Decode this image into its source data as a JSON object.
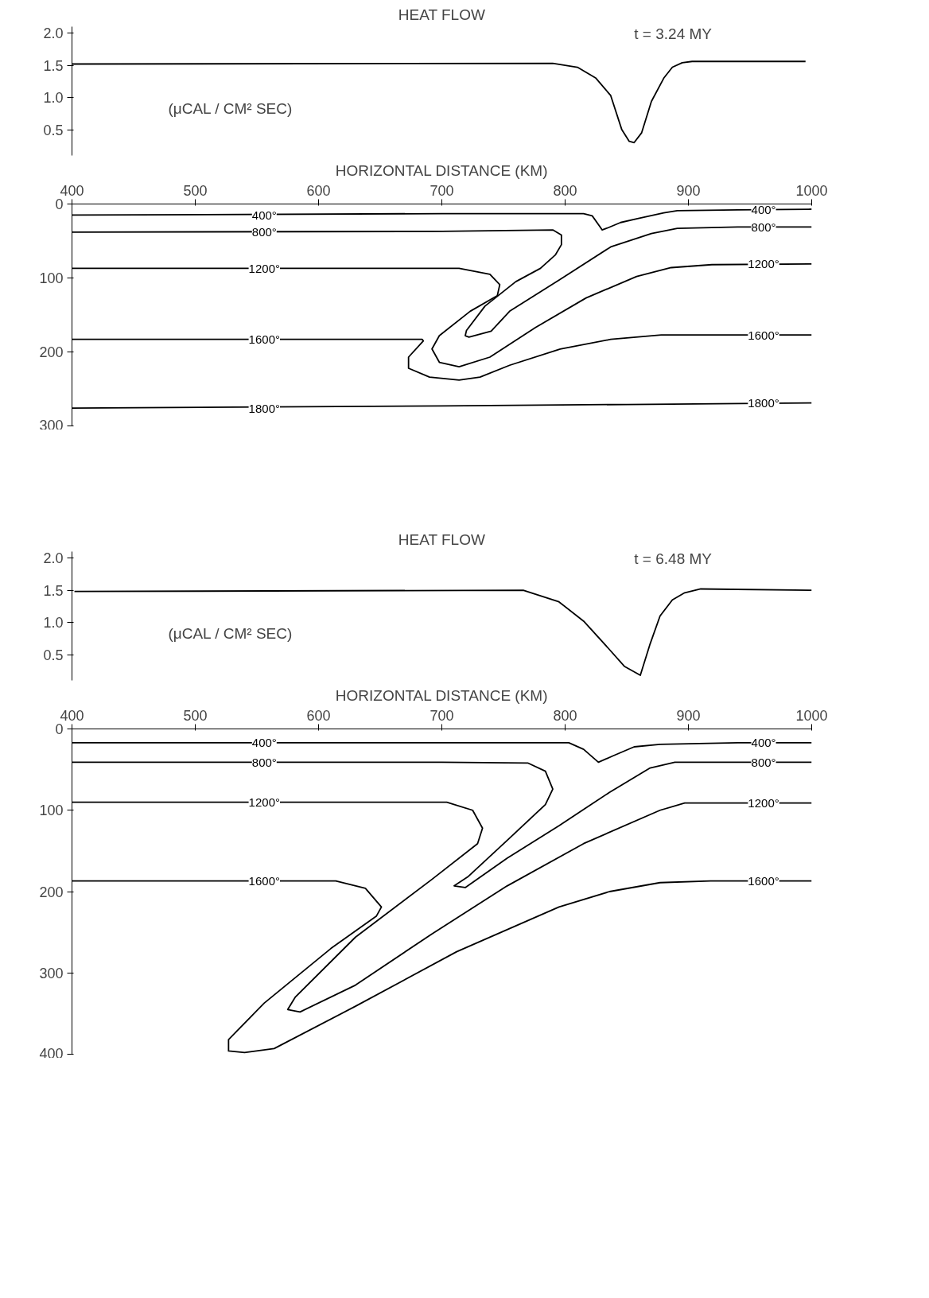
{
  "chart_data": [
    {
      "type": "line",
      "title": "HEAT FLOW",
      "ylabel": "(μCAL / CM² SEC)",
      "annotations": [
        "t = 3.24 MY"
      ],
      "xlim": [
        400,
        1000
      ],
      "ylim": [
        0.1,
        2.1
      ],
      "yticks": [
        {
          "value": 0.5,
          "label": "0.5"
        },
        {
          "value": 1,
          "label": "1.0"
        },
        {
          "value": 1.5,
          "label": "1.5"
        },
        {
          "value": 2,
          "label": "2.0"
        }
      ],
      "tick_labels": "y",
      "grid": false,
      "series": [
        {
          "color": "#000000",
          "x": [
            400,
            790,
            810,
            825,
            837,
            846,
            852,
            856,
            862,
            870,
            880,
            887,
            895,
            903,
            995
          ],
          "values": [
            1.52,
            1.53,
            1.47,
            1.3,
            1.03,
            0.5,
            0.32,
            0.3,
            0.45,
            0.94,
            1.3,
            1.47,
            1.54,
            1.56,
            1.56
          ]
        }
      ]
    },
    {
      "type": "line",
      "xlabel": "HORIZONTAL DISTANCE (KM)",
      "xlim": [
        400,
        1000
      ],
      "xticks": [
        400,
        500,
        600,
        700,
        800,
        900,
        1000
      ],
      "ylim": [
        300,
        0
      ],
      "yticks": [
        0,
        100,
        200,
        300
      ],
      "grid": false,
      "series": [
        {
          "name": "400°",
          "color": "#000000",
          "x": [
            400,
            700,
            815,
            822,
            828,
            830,
            835,
            845,
            858,
            880,
            891,
            940,
            1000
          ],
          "values": [
            15,
            13,
            13,
            16,
            30,
            35,
            32,
            25,
            20,
            12,
            9,
            8,
            7
          ]
        },
        {
          "name": "800°",
          "color": "#000000",
          "x": [
            400,
            700,
            790,
            797,
            797,
            792,
            780,
            760,
            735,
            720,
            719,
            722,
            740,
            755,
            796,
            837,
            870,
            891,
            940,
            1000
          ],
          "values": [
            38,
            37,
            35,
            42,
            55,
            69,
            87,
            105,
            138,
            171,
            178,
            180,
            172,
            145,
            102,
            58,
            40,
            33,
            31,
            31
          ]
        },
        {
          "name": "1200°",
          "color": "#000000",
          "x": [
            400,
            714,
            739,
            747,
            745,
            723,
            698,
            692,
            698,
            714,
            739,
            776,
            817,
            858,
            886,
            919,
            1000
          ],
          "values": [
            87,
            87,
            95,
            109,
            124,
            145,
            178,
            196,
            214,
            220,
            207,
            167,
            127,
            98,
            86,
            82,
            81
          ]
        },
        {
          "name": "1600°",
          "color": "#000000",
          "x": [
            400,
            684,
            685,
            673,
            673,
            690,
            714,
            731,
            755,
            796,
            837,
            878,
            940,
            1000
          ],
          "values": [
            183,
            183,
            185,
            207,
            222,
            234,
            238,
            234,
            218,
            196,
            183,
            177,
            177,
            177
          ]
        },
        {
          "name": "1800°",
          "color": "#000000",
          "x": [
            400,
            700,
            850,
            1000
          ],
          "values": [
            276,
            273,
            271,
            269
          ]
        }
      ]
    },
    {
      "type": "line",
      "title": "HEAT FLOW",
      "ylabel": "(μCAL / CM² SEC)",
      "annotations": [
        "t = 6.48 MY"
      ],
      "xlim": [
        400,
        1000
      ],
      "ylim": [
        0.1,
        2.1
      ],
      "yticks": [
        {
          "value": 0.5,
          "label": "0.5"
        },
        {
          "value": 1,
          "label": "1.0"
        },
        {
          "value": 1.5,
          "label": "1.5"
        },
        {
          "value": 2,
          "label": "2.0"
        }
      ],
      "tick_labels": "y",
      "grid": false,
      "series": [
        {
          "color": "#000000",
          "x": [
            402,
            766,
            795,
            815,
            835,
            848,
            861,
            869,
            877,
            887,
            897,
            910,
            1000
          ],
          "values": [
            1.48,
            1.5,
            1.32,
            1.02,
            0.6,
            0.32,
            0.18,
            0.67,
            1.1,
            1.35,
            1.46,
            1.52,
            1.5
          ]
        }
      ]
    },
    {
      "type": "line",
      "xlabel": "HORIZONTAL DISTANCE (KM)",
      "xlim": [
        400,
        1000
      ],
      "xticks": [
        400,
        500,
        600,
        700,
        800,
        900,
        1000
      ],
      "ylim": [
        400,
        0
      ],
      "yticks": [
        0,
        100,
        200,
        300,
        400
      ],
      "grid": false,
      "series": [
        {
          "name": "400°",
          "color": "#000000",
          "x": [
            400,
            700,
            803,
            815,
            827,
            839,
            856,
            877,
            940,
            1000
          ],
          "values": [
            17,
            17,
            17,
            25,
            41,
            33,
            22,
            19,
            17,
            17
          ]
        },
        {
          "name": "800°",
          "color": "#000000",
          "x": [
            400,
            700,
            770,
            784,
            790,
            784,
            753,
            721,
            710,
            719,
            753,
            795,
            836,
            869,
            889,
            940,
            1000
          ],
          "values": [
            41,
            41,
            42,
            52,
            74,
            93,
            137,
            182,
            193,
            195,
            159,
            119,
            78,
            48,
            41,
            41,
            41
          ]
        },
        {
          "name": "1200°",
          "color": "#000000",
          "x": [
            400,
            704,
            725,
            733,
            729,
            692,
            630,
            581,
            575,
            585,
            630,
            692,
            753,
            815,
            877,
            897,
            940,
            1000
          ],
          "values": [
            90,
            90,
            100,
            122,
            141,
            185,
            256,
            330,
            345,
            348,
            315,
            252,
            193,
            141,
            100,
            91,
            91,
            91
          ]
        },
        {
          "name": "1600°",
          "color": "#000000",
          "x": [
            400,
            614,
            638,
            651,
            647,
            610,
            556,
            527,
            527,
            540,
            564,
            630,
            712,
            795,
            836,
            877,
            918,
            1000
          ],
          "values": [
            187,
            187,
            196,
            219,
            230,
            270,
            337,
            382,
            396,
            398,
            393,
            341,
            274,
            219,
            200,
            189,
            187,
            187
          ]
        }
      ]
    }
  ]
}
